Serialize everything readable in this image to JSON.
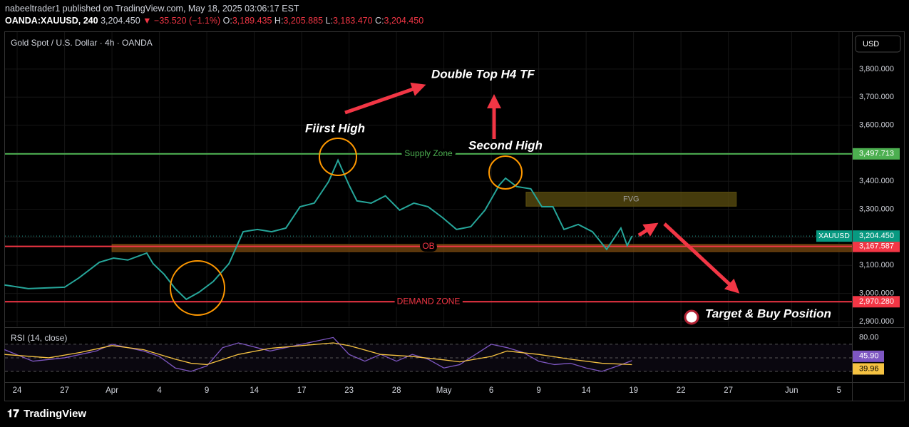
{
  "header": {
    "author_line": "nabeeltrader1 published on TradingView.com, May 18, 2025 03:06:17 EST",
    "symbol": "OANDA:XAUUSD, 240",
    "last": "3,204.450",
    "change": "▼ −35.520 (−1.1%)",
    "ohlc": [
      {
        "key": "O:",
        "value": "3,189.435"
      },
      {
        "key": "H:",
        "value": "3,205.885"
      },
      {
        "key": "L:",
        "value": "3,183.470"
      },
      {
        "key": "C:",
        "value": "3,204.450"
      }
    ]
  },
  "footer": {
    "brand": "TradingView"
  },
  "chart_data": [
    {
      "type": "line",
      "title": "Gold Spot / U.S. Dollar · 4h · OANDA",
      "currency": "USD",
      "xlim": [
        -0.77,
        52.82
      ],
      "ylim": [
        2882,
        3932
      ],
      "grid": true,
      "xticks": [
        {
          "value": 0,
          "label": "24"
        },
        {
          "value": 3,
          "label": "27"
        },
        {
          "value": 6,
          "label": "Apr"
        },
        {
          "value": 9,
          "label": "4"
        },
        {
          "value": 12,
          "label": "9"
        },
        {
          "value": 15,
          "label": "14"
        },
        {
          "value": 18,
          "label": "17"
        },
        {
          "value": 21,
          "label": "23"
        },
        {
          "value": 24,
          "label": "28"
        },
        {
          "value": 27,
          "label": "May"
        },
        {
          "value": 30,
          "label": "6"
        },
        {
          "value": 33,
          "label": "9"
        },
        {
          "value": 36,
          "label": "14"
        },
        {
          "value": 39,
          "label": "19"
        },
        {
          "value": 42,
          "label": "22"
        },
        {
          "value": 45,
          "label": "27"
        },
        {
          "value": 49,
          "label": "Jun"
        },
        {
          "value": 52,
          "label": "5"
        }
      ],
      "yticks": [
        {
          "value": 2900,
          "label": "2,900.000"
        },
        {
          "value": 3000,
          "label": "3,000.000"
        },
        {
          "value": 3100,
          "label": "3,100.000"
        },
        {
          "value": 3200,
          "label": "3,200.000"
        },
        {
          "value": 3300,
          "label": "3,300.000"
        },
        {
          "value": 3400,
          "label": "3,400.000"
        },
        {
          "value": 3500,
          "label": "3,500.000"
        },
        {
          "value": 3600,
          "label": "3,600.000"
        },
        {
          "value": 3700,
          "label": "3,700.000"
        },
        {
          "value": 3800,
          "label": "3,800.000"
        }
      ],
      "series": [
        {
          "name": "XAUUSD",
          "color": "#26a69a",
          "x": [
            -0.8,
            0.7,
            3.0,
            3.9,
            5.2,
            6.1,
            7.0,
            8.2,
            8.6,
            9.3,
            10.0,
            10.7,
            11.5,
            12.4,
            13.4,
            14.3,
            15.2,
            16.1,
            17.0,
            17.9,
            18.8,
            19.7,
            20.3,
            21.0,
            21.5,
            22.4,
            23.3,
            24.2,
            25.1,
            26.0,
            26.9,
            27.8,
            28.7,
            29.6,
            30.5,
            30.9,
            31.6,
            32.5,
            33.2,
            33.9,
            34.6,
            35.5,
            36.4,
            37.3,
            38.2,
            38.6,
            38.9
          ],
          "values": [
            3030,
            3017,
            3022,
            3055,
            3111,
            3126,
            3119,
            3144,
            3106,
            3068,
            3017,
            2979,
            3004,
            3042,
            3106,
            3220,
            3228,
            3220,
            3233,
            3309,
            3322,
            3398,
            3475,
            3386,
            3330,
            3322,
            3348,
            3297,
            3322,
            3309,
            3271,
            3228,
            3238,
            3297,
            3386,
            3411,
            3381,
            3373,
            3309,
            3309,
            3228,
            3246,
            3220,
            3157,
            3233,
            3170,
            3204.45
          ],
          "last": {
            "value": 3204.45,
            "label": "3,204.450"
          }
        }
      ],
      "levels": [
        {
          "name": "Supply Zone",
          "value": 3497.713,
          "label": "3,497.713",
          "color": "#4caf50"
        },
        {
          "name": "OB",
          "value": 3167.587,
          "label": "3,167.587",
          "color": "#f23645"
        },
        {
          "name": "DEMAND ZONE",
          "value": 2970.28,
          "label": "2,970.280",
          "color": "#f23645"
        }
      ],
      "zones": [
        {
          "name": "FVG",
          "range": [
            3311,
            3361
          ],
          "x": [
            32.2,
            45.5
          ],
          "color": "#5c4f10"
        },
        {
          "range": [
            3149,
            3175
          ],
          "x": [
            6.0,
            52.82
          ],
          "color": "#7a4a10"
        }
      ],
      "annotations": [
        "Double Top H4 TF",
        "Fiirst High",
        "Second High",
        "Target & Buy Position"
      ]
    },
    {
      "type": "line",
      "title": "RSI (14, close)",
      "xlim": [
        -0.77,
        52.82
      ],
      "ylim": [
        20.5,
        92
      ],
      "yticks": [
        {
          "value": 80,
          "label": "80.00"
        }
      ],
      "bands": [
        30,
        50,
        70
      ],
      "series": [
        {
          "name": "RSI",
          "color": "#7e57c2",
          "x": [
            -0.8,
            1,
            3,
            5,
            6,
            8,
            9,
            10,
            11,
            12,
            13,
            14,
            16,
            18,
            19,
            20,
            21,
            22,
            23,
            24,
            25,
            26,
            27,
            28,
            29,
            30,
            31,
            32,
            33,
            34,
            35,
            36,
            37,
            38,
            38.9
          ],
          "values": [
            62,
            45,
            50,
            60,
            70,
            60,
            52,
            35,
            30,
            38,
            65,
            72,
            60,
            70,
            75,
            80,
            55,
            45,
            55,
            45,
            55,
            48,
            35,
            40,
            55,
            70,
            65,
            58,
            45,
            40,
            42,
            35,
            30,
            38,
            45.9
          ],
          "last_label": "45.90"
        },
        {
          "name": "RSI-based MA",
          "color": "#f5c242",
          "x": [
            -0.8,
            2,
            4,
            6,
            8,
            10,
            11,
            12,
            14,
            16,
            18,
            20,
            21,
            23,
            25,
            27,
            28,
            30,
            31,
            33,
            35,
            37,
            38.9
          ],
          "values": [
            55,
            50,
            58,
            68,
            62,
            48,
            42,
            40,
            55,
            64,
            68,
            72,
            68,
            55,
            52,
            47,
            44,
            52,
            60,
            55,
            48,
            42,
            39.96
          ],
          "last_label": "39.96"
        }
      ]
    }
  ]
}
